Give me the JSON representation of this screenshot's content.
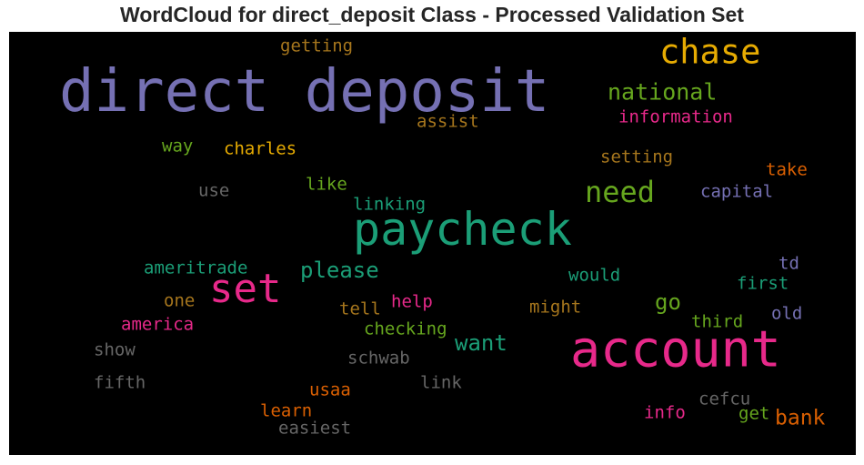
{
  "title": "WordCloud for direct_deposit Class - Processed Validation Set",
  "words": [
    {
      "text": "direct deposit",
      "color": "#7570b3"
    },
    {
      "text": "paycheck",
      "color": "#1b9e77"
    },
    {
      "text": "account",
      "color": "#e7298a"
    },
    {
      "text": "chase",
      "color": "#e6ab02"
    },
    {
      "text": "set",
      "color": "#e7298a"
    },
    {
      "text": "need",
      "color": "#66a61e"
    },
    {
      "text": "national",
      "color": "#66a61e"
    },
    {
      "text": "please",
      "color": "#1b9e77"
    },
    {
      "text": "want",
      "color": "#1b9e77"
    },
    {
      "text": "go",
      "color": "#66a61e"
    },
    {
      "text": "bank",
      "color": "#d95f02"
    },
    {
      "text": "getting",
      "color": "#a6761d"
    },
    {
      "text": "assist",
      "color": "#a6761d"
    },
    {
      "text": "information",
      "color": "#e7298a"
    },
    {
      "text": "way",
      "color": "#66a61e"
    },
    {
      "text": "charles",
      "color": "#e6ab02"
    },
    {
      "text": "setting",
      "color": "#a6761d"
    },
    {
      "text": "take",
      "color": "#d95f02"
    },
    {
      "text": "use",
      "color": "#666666"
    },
    {
      "text": "like",
      "color": "#66a61e"
    },
    {
      "text": "linking",
      "color": "#1b9e77"
    },
    {
      "text": "capital",
      "color": "#7570b3"
    },
    {
      "text": "td",
      "color": "#7570b3"
    },
    {
      "text": "ameritrade",
      "color": "#1b9e77"
    },
    {
      "text": "would",
      "color": "#1b9e77"
    },
    {
      "text": "first",
      "color": "#1b9e77"
    },
    {
      "text": "one",
      "color": "#a6761d"
    },
    {
      "text": "tell",
      "color": "#a6761d"
    },
    {
      "text": "help",
      "color": "#e7298a"
    },
    {
      "text": "might",
      "color": "#a6761d"
    },
    {
      "text": "old",
      "color": "#7570b3"
    },
    {
      "text": "america",
      "color": "#e7298a"
    },
    {
      "text": "checking",
      "color": "#66a61e"
    },
    {
      "text": "third",
      "color": "#66a61e"
    },
    {
      "text": "show",
      "color": "#666666"
    },
    {
      "text": "schwab",
      "color": "#666666"
    },
    {
      "text": "fifth",
      "color": "#666666"
    },
    {
      "text": "link",
      "color": "#666666"
    },
    {
      "text": "usaa",
      "color": "#d95f02"
    },
    {
      "text": "cefcu",
      "color": "#666666"
    },
    {
      "text": "learn",
      "color": "#d95f02"
    },
    {
      "text": "info",
      "color": "#e7298a"
    },
    {
      "text": "get",
      "color": "#66a61e"
    },
    {
      "text": "easiest",
      "color": "#666666"
    }
  ]
}
